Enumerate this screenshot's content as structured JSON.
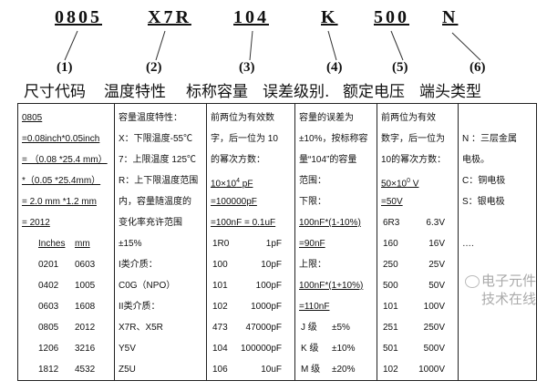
{
  "codes": [
    "0805",
    "X7R",
    "104",
    "K",
    "500",
    "N"
  ],
  "numbers": [
    "(1)",
    "(2)",
    "(3)",
    "(4)",
    "(5)",
    "(6)"
  ],
  "titles": [
    "尺寸代码",
    "温度特性",
    "标称容量",
    "误差级别.",
    "额定电压",
    "端头类型"
  ],
  "columns": [
    {
      "lines": [
        {
          "t": "0805",
          "u": true
        },
        {
          "t": "=0.08inch*0.05inch",
          "u": true
        },
        {
          "t": "= （0.08 *25.4 mm）",
          "u": true
        },
        {
          "t": " *（0.05 *25.4mm）",
          "u": true
        },
        {
          "t": "= 2.0 mm *1.2 mm",
          "u": true
        },
        {
          "t": "= 2012",
          "u": true
        },
        {
          "pair": [
            "Inches",
            "mm"
          ],
          "u": true
        },
        {
          "pair": [
            "0201",
            "0603"
          ]
        },
        {
          "pair": [
            "0402",
            "1005"
          ]
        },
        {
          "pair": [
            "0603",
            "1608"
          ]
        },
        {
          "pair": [
            "0805",
            "2012"
          ]
        },
        {
          "pair": [
            "1206",
            "3216"
          ]
        },
        {
          "pair": [
            "1812",
            "4532"
          ]
        }
      ]
    },
    {
      "lines": [
        {
          "t": "容量温度特性："
        },
        {
          "t": "X：下限温度-55℃"
        },
        {
          "t": "7：上限温度 125℃"
        },
        {
          "t": "R：上下限温度范围"
        },
        {
          "t": "内，容量随温度的"
        },
        {
          "t": "变化率充许范围"
        },
        {
          "t": "±15%"
        },
        {
          "t": "I类介质："
        },
        {
          "t": "  C0G（NPO）"
        },
        {
          "t": "II类介质："
        },
        {
          "t": "  X7R、X5R"
        },
        {
          "t": "  Y5V"
        },
        {
          "t": "  Z5U"
        }
      ]
    },
    {
      "lines": [
        {
          "t": "前两位为有效数"
        },
        {
          "t": "字，后一位为 10"
        },
        {
          "t": "的幂次方数："
        },
        {
          "t": "10×10",
          "sup": "4",
          "after": " pF",
          "u": true
        },
        {
          "t": "=100000pF",
          "u": true
        },
        {
          "t": "=100nF = 0.1uF",
          "u": true
        },
        {
          "pair": [
            "1R0",
            "1pF"
          ]
        },
        {
          "pair": [
            "100",
            "10pF"
          ]
        },
        {
          "pair": [
            "101",
            "100pF"
          ]
        },
        {
          "pair": [
            "102",
            "1000pF"
          ]
        },
        {
          "pair": [
            "473",
            "47000pF"
          ]
        },
        {
          "pair": [
            "104",
            "100000pF"
          ]
        },
        {
          "pair": [
            "106",
            "10uF"
          ]
        }
      ]
    },
    {
      "lines": [
        {
          "t": "容量的误差为"
        },
        {
          "t": "±10%，按标称容"
        },
        {
          "t": "量“104”的容量"
        },
        {
          "t": "范围："
        },
        {
          "t": "下限："
        },
        {
          "t": "100nF*(1-10%)",
          "u": true
        },
        {
          "t": "=90nF",
          "u": true
        },
        {
          "t": "上限："
        },
        {
          "t": "100nF*(1+10%)",
          "u": true
        },
        {
          "t": "=110nF",
          "u": true
        },
        {
          "pair": [
            "J 级",
            "±5%"
          ]
        },
        {
          "pair": [
            "K 级",
            "±10%"
          ]
        },
        {
          "pair": [
            "M 级",
            "±20%"
          ]
        }
      ]
    },
    {
      "lines": [
        {
          "t": "前两位为有效"
        },
        {
          "t": "数字，后一位为"
        },
        {
          "t": "10的幂次方数："
        },
        {
          "t": "50×10",
          "sup": "0",
          "after": " V",
          "u": true
        },
        {
          "t": "=50V",
          "u": true
        },
        {
          "pair": [
            "6R3",
            "6.3V"
          ]
        },
        {
          "pair": [
            "160",
            "16V"
          ]
        },
        {
          "pair": [
            "250",
            "25V"
          ]
        },
        {
          "pair": [
            "500",
            "50V"
          ]
        },
        {
          "pair": [
            "101",
            "100V"
          ]
        },
        {
          "pair": [
            "251",
            "250V"
          ]
        },
        {
          "pair": [
            "501",
            "500V"
          ]
        },
        {
          "pair": [
            "102",
            "1000V"
          ]
        }
      ]
    },
    {
      "lines": [
        {
          "t": ""
        },
        {
          "t": "N ：三层金属"
        },
        {
          "t": "电极。"
        },
        {
          "t": "C：铜电极"
        },
        {
          "t": "S：银电极"
        },
        {
          "t": ""
        },
        {
          "t": "…."
        }
      ]
    }
  ],
  "watermark": "电子元件技术在线"
}
